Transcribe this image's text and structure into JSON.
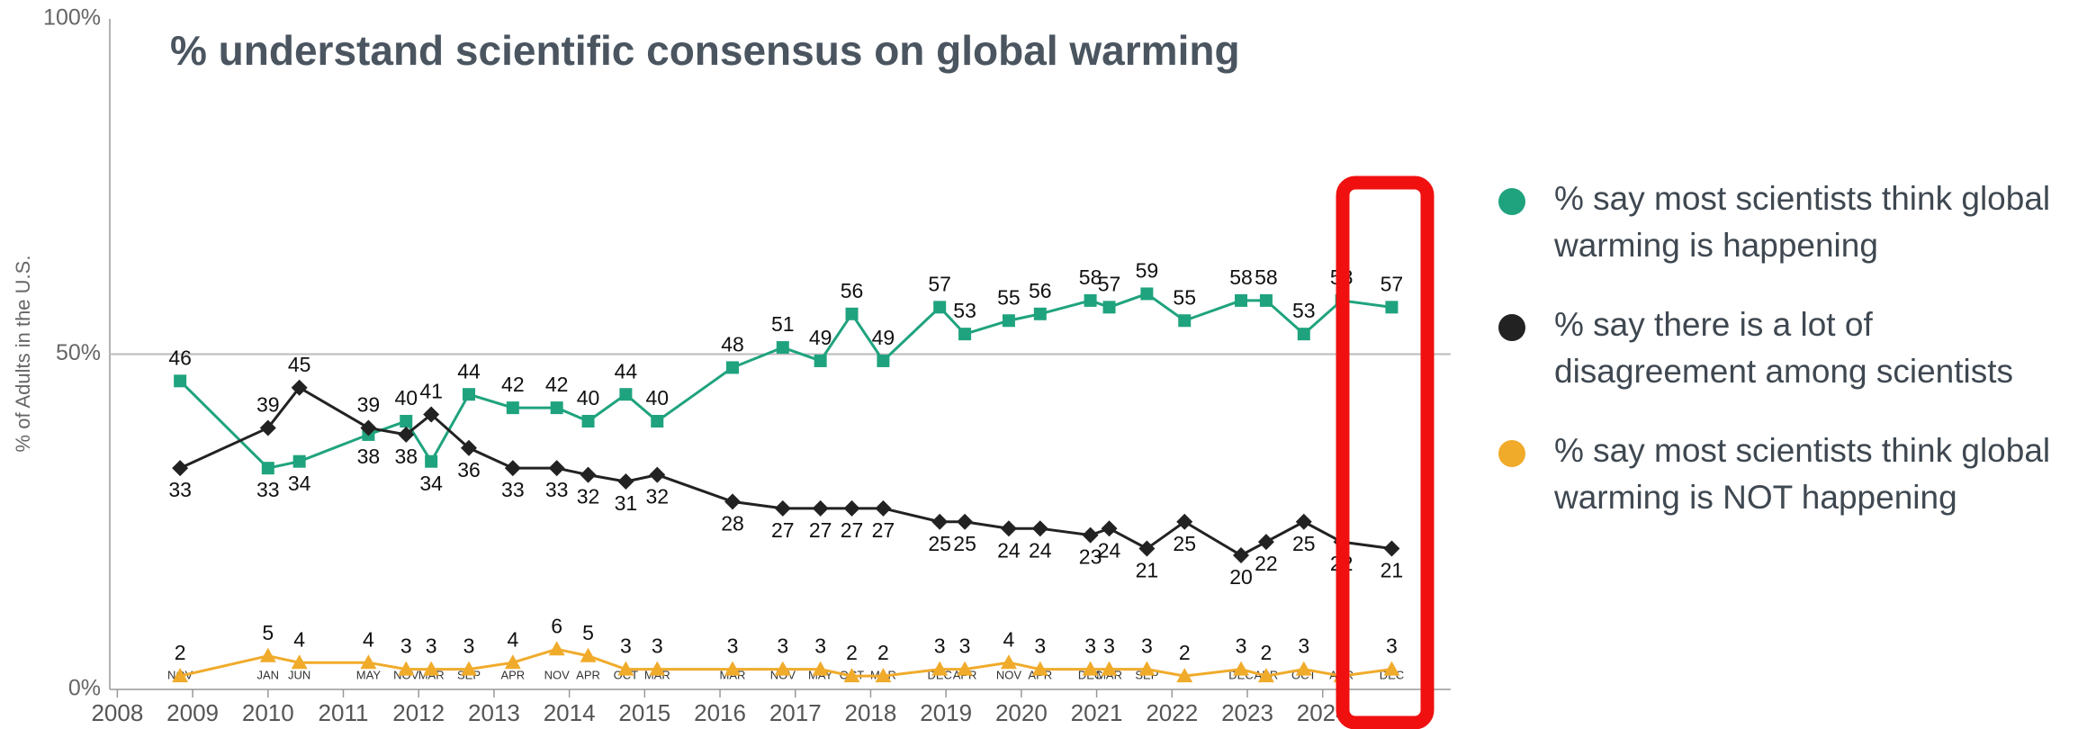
{
  "chart_data": {
    "type": "line",
    "title": "% understand scientific consensus on global warming",
    "y_label": "% of Adults in the U.S.",
    "x": [
      "2008-11",
      "2010-01",
      "2010-06",
      "2011-05",
      "2011-11",
      "2012-03",
      "2012-09",
      "2013-04",
      "2013-11",
      "2014-04",
      "2014-10",
      "2015-03",
      "2016-03",
      "2016-11",
      "2017-05",
      "2017-10",
      "2018-03",
      "2018-12",
      "2019-04",
      "2019-11",
      "2020-04",
      "2020-12",
      "2021-03",
      "2021-09",
      "2022-03",
      "2022-12",
      "2023-04",
      "2023-10",
      "2024-04",
      "2024-12"
    ],
    "x_labels": [
      "NOV",
      "JAN",
      "JUN",
      "MAY",
      "NOV",
      "MAR",
      "SEP",
      "APR",
      "NOV",
      "APR",
      "OCT",
      "MAR",
      "MAR",
      "NOV",
      "MAY",
      "OCT",
      "MAR",
      "DEC",
      "APR",
      "NOV",
      "APR",
      "DEC",
      "MAR",
      "SEP",
      null,
      "DEC",
      "APR",
      "OCT",
      "APR",
      "DEC"
    ],
    "xlim": [
      2007.9,
      2025.7
    ],
    "xticks": [
      2008,
      2009,
      2010,
      2011,
      2012,
      2013,
      2014,
      2015,
      2016,
      2017,
      2018,
      2019,
      2020,
      2021,
      2022,
      2023,
      2024
    ],
    "ylim": [
      0,
      100
    ],
    "yticks": [
      {
        "value": 0,
        "label": "0%"
      },
      {
        "value": 50,
        "label": "50%"
      },
      {
        "value": 100,
        "label": "100%"
      }
    ],
    "grid": true,
    "legend": "right",
    "series": [
      {
        "name": "% say most scientists think global warming is happening",
        "color": "#1fa37e",
        "marker": "square",
        "values": [
          46,
          33,
          34,
          38,
          40,
          34,
          44,
          42,
          42,
          40,
          44,
          40,
          48,
          51,
          49,
          56,
          49,
          57,
          53,
          55,
          56,
          58,
          57,
          59,
          55,
          58,
          58,
          53,
          58,
          57
        ]
      },
      {
        "name": "% say there is a lot of disagreement among scientists",
        "color": "#222222",
        "marker": "diamond",
        "values": [
          33,
          39,
          45,
          39,
          38,
          41,
          36,
          33,
          33,
          32,
          31,
          32,
          28,
          27,
          27,
          27,
          27,
          25,
          25,
          24,
          24,
          23,
          24,
          21,
          25,
          20,
          22,
          25,
          22,
          21
        ]
      },
      {
        "name": "% say most scientists think global warming is NOT happening",
        "color": "#f0ab2b",
        "marker": "triangle",
        "values": [
          2,
          5,
          4,
          4,
          3,
          3,
          3,
          4,
          6,
          5,
          3,
          3,
          3,
          3,
          3,
          2,
          2,
          3,
          3,
          4,
          3,
          3,
          3,
          3,
          2,
          3,
          2,
          3,
          2,
          3
        ],
        "value_labels": [
          "2",
          "5",
          "4",
          "4",
          "3",
          "3",
          "3",
          "4",
          "6",
          "5",
          "3",
          "3",
          "3",
          "3",
          "3",
          "2",
          "2",
          "3",
          "3",
          "4",
          "3",
          "3",
          "3",
          "3",
          "2",
          "3",
          "2",
          "3",
          null,
          "3"
        ]
      }
    ]
  }
}
